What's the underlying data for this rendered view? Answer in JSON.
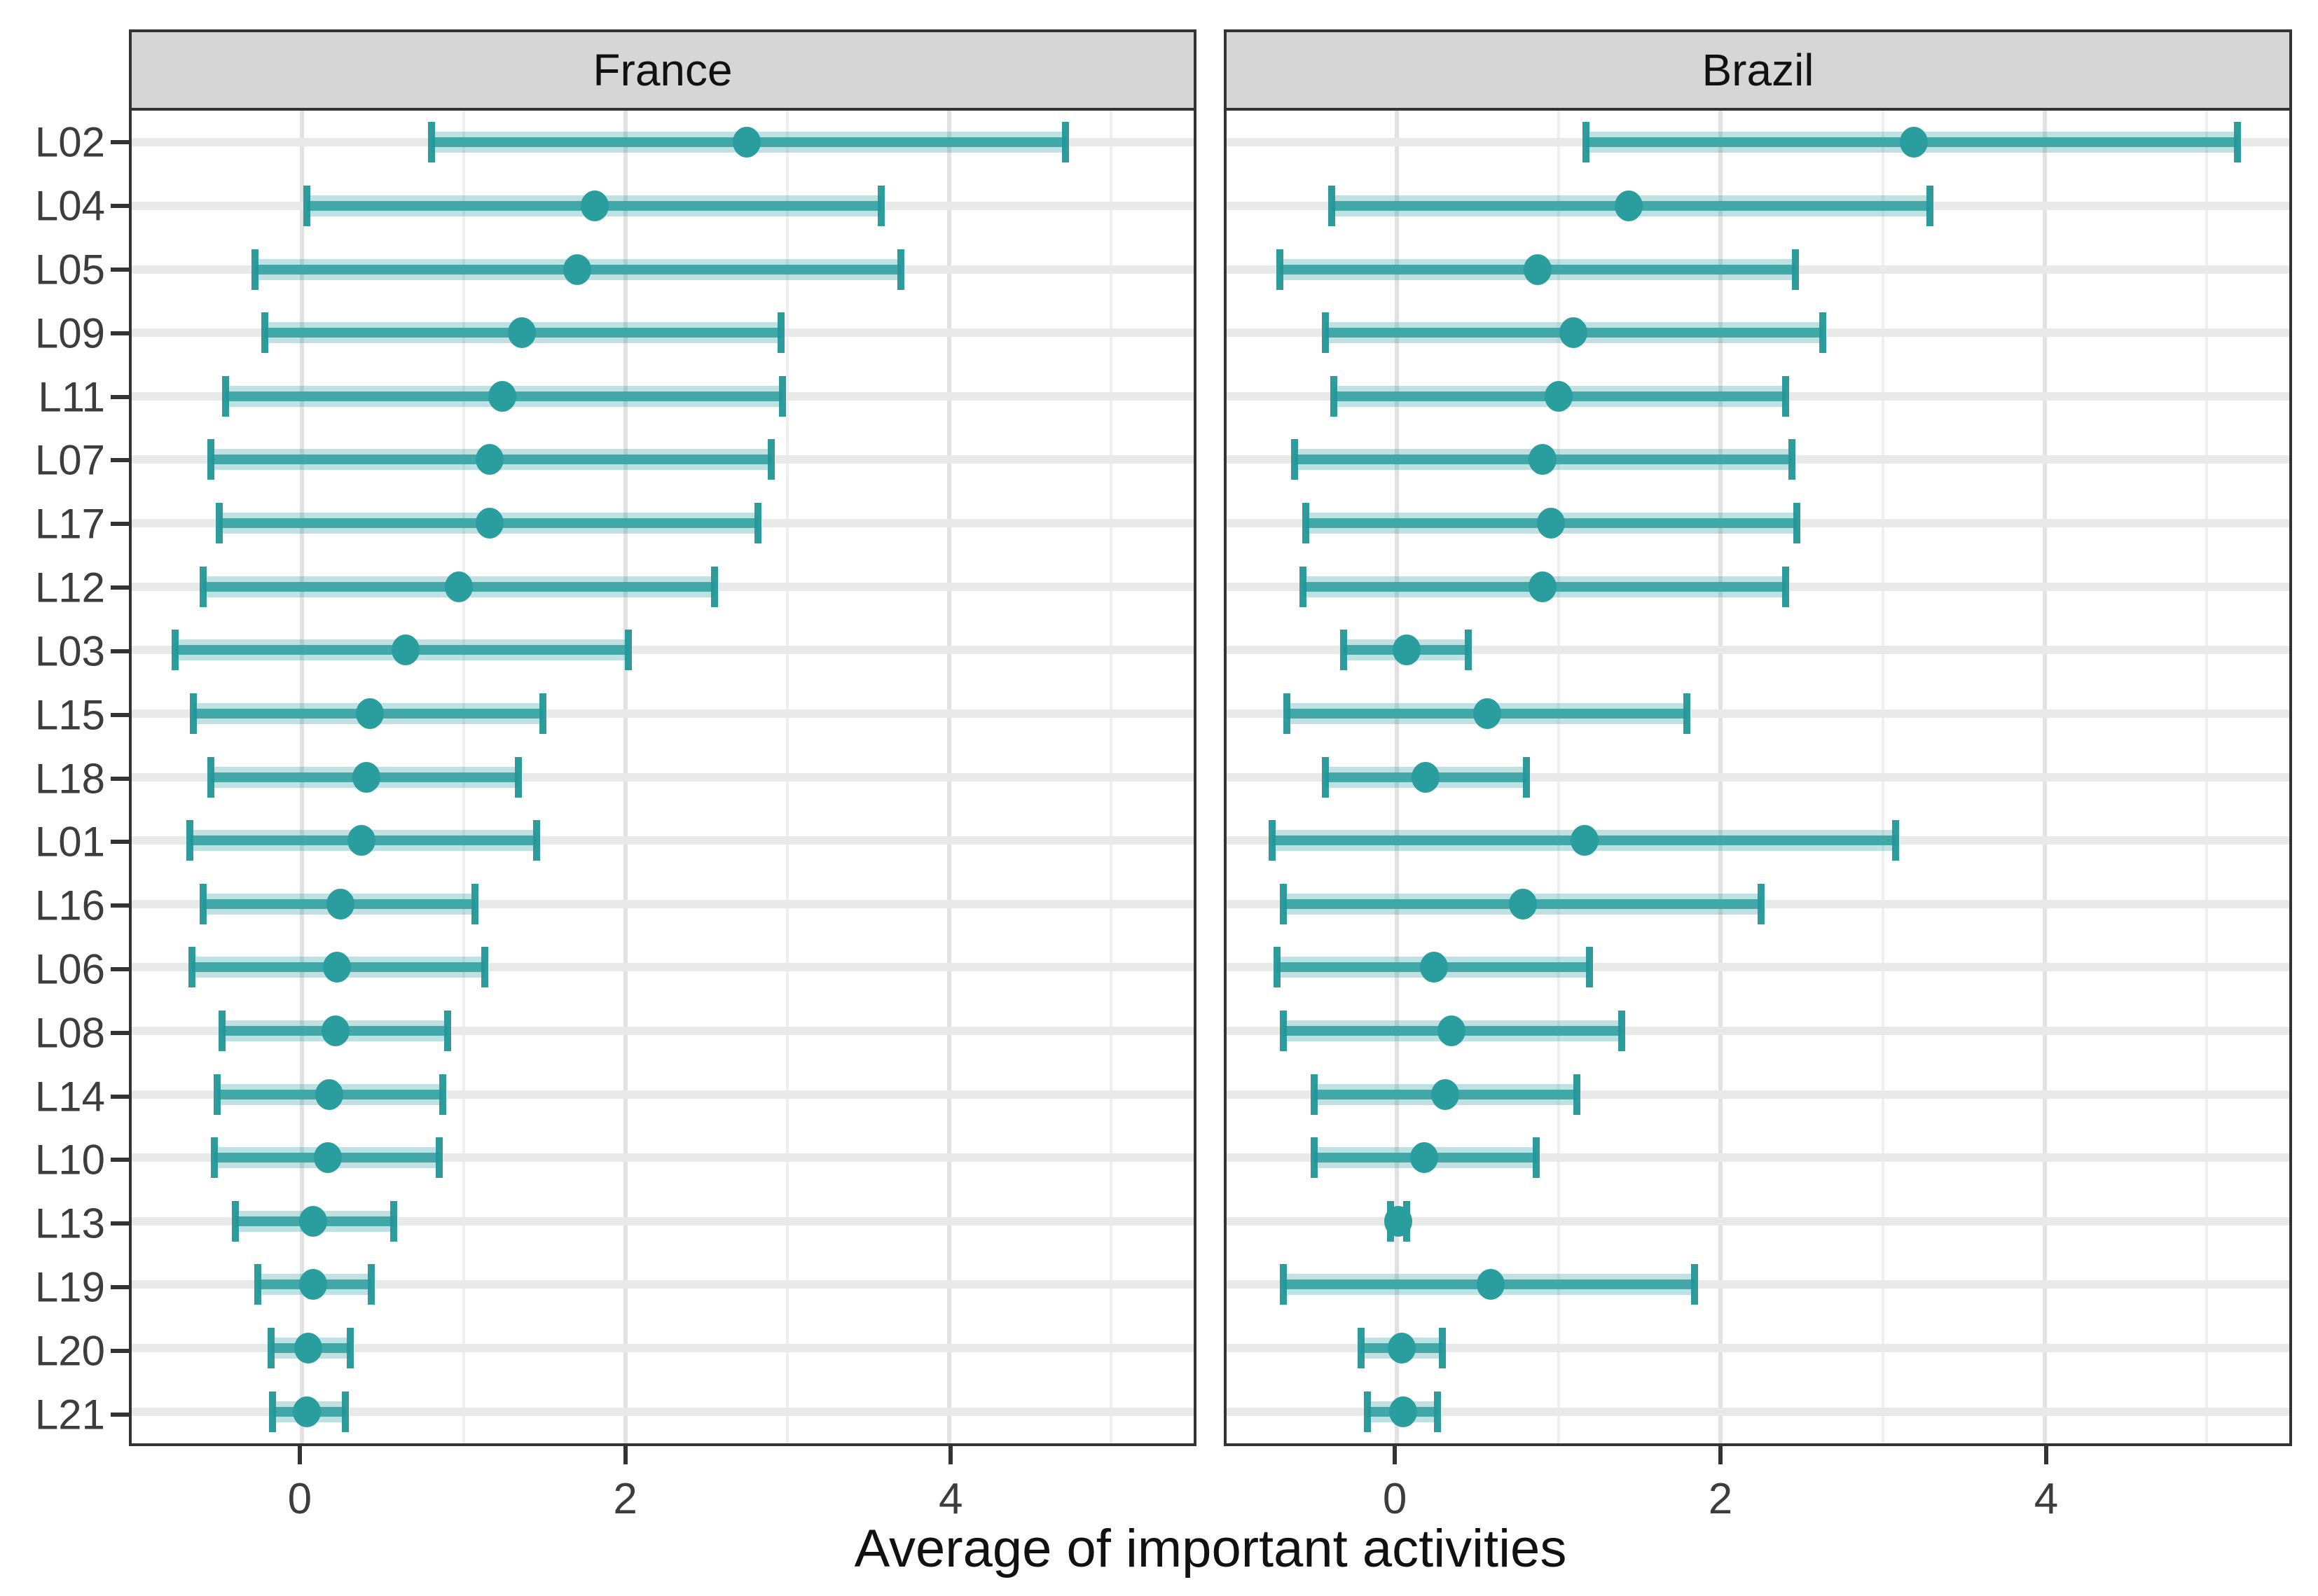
{
  "chart_data": {
    "type": "scatter",
    "subtype": "dot-plot-with-horizontal-error-bars",
    "title": "",
    "xlabel": "Average of important activities",
    "ylabel": "",
    "xlim": [
      -1.05,
      5.51
    ],
    "x_major_ticks": [
      0,
      2,
      4
    ],
    "x_tick_labels": [
      "0",
      "2",
      "4"
    ],
    "x_minor_gridlines": [
      1,
      3,
      5
    ],
    "grid": true,
    "legend": "none",
    "point_color": "#2A9D9E",
    "bar_color": "rgba(42,157,158,0.82)",
    "header_fill": "#d6d6d6",
    "categories": [
      "L02",
      "L04",
      "L05",
      "L09",
      "L11",
      "L07",
      "L17",
      "L12",
      "L03",
      "L15",
      "L18",
      "L01",
      "L16",
      "L06",
      "L08",
      "L14",
      "L10",
      "L13",
      "L19",
      "L20",
      "L21"
    ],
    "facets": [
      {
        "label": "France",
        "rows": [
          {
            "label": "L02",
            "x": 2.75,
            "xmin": 0.8,
            "xmax": 4.72
          },
          {
            "label": "L04",
            "x": 1.81,
            "xmin": 0.03,
            "xmax": 3.58
          },
          {
            "label": "L05",
            "x": 1.7,
            "xmin": -0.29,
            "xmax": 3.7
          },
          {
            "label": "L09",
            "x": 1.36,
            "xmin": -0.23,
            "xmax": 2.96
          },
          {
            "label": "L11",
            "x": 1.24,
            "xmin": -0.47,
            "xmax": 2.97
          },
          {
            "label": "L07",
            "x": 1.16,
            "xmin": -0.56,
            "xmax": 2.9
          },
          {
            "label": "L17",
            "x": 1.16,
            "xmin": -0.51,
            "xmax": 2.82
          },
          {
            "label": "L12",
            "x": 0.97,
            "xmin": -0.61,
            "xmax": 2.55
          },
          {
            "label": "L03",
            "x": 0.64,
            "xmin": -0.78,
            "xmax": 2.02
          },
          {
            "label": "L15",
            "x": 0.42,
            "xmin": -0.67,
            "xmax": 1.49
          },
          {
            "label": "L18",
            "x": 0.4,
            "xmin": -0.56,
            "xmax": 1.34
          },
          {
            "label": "L01",
            "x": 0.37,
            "xmin": -0.69,
            "xmax": 1.45
          },
          {
            "label": "L16",
            "x": 0.24,
            "xmin": -0.61,
            "xmax": 1.07
          },
          {
            "label": "L06",
            "x": 0.22,
            "xmin": -0.68,
            "xmax": 1.13
          },
          {
            "label": "L08",
            "x": 0.21,
            "xmin": -0.49,
            "xmax": 0.9
          },
          {
            "label": "L14",
            "x": 0.17,
            "xmin": -0.52,
            "xmax": 0.87
          },
          {
            "label": "L10",
            "x": 0.16,
            "xmin": -0.54,
            "xmax": 0.85
          },
          {
            "label": "L13",
            "x": 0.07,
            "xmin": -0.41,
            "xmax": 0.57
          },
          {
            "label": "L19",
            "x": 0.07,
            "xmin": -0.27,
            "xmax": 0.43
          },
          {
            "label": "L20",
            "x": 0.04,
            "xmin": -0.19,
            "xmax": 0.3
          },
          {
            "label": "L21",
            "x": 0.03,
            "xmin": -0.18,
            "xmax": 0.27
          }
        ]
      },
      {
        "label": "Brazil",
        "rows": [
          {
            "label": "L02",
            "x": 3.19,
            "xmin": 1.17,
            "xmax": 5.19
          },
          {
            "label": "L04",
            "x": 1.43,
            "xmin": -0.4,
            "xmax": 3.29
          },
          {
            "label": "L05",
            "x": 0.87,
            "xmin": -0.72,
            "xmax": 2.46
          },
          {
            "label": "L09",
            "x": 1.09,
            "xmin": -0.44,
            "xmax": 2.63
          },
          {
            "label": "L11",
            "x": 1.0,
            "xmin": -0.39,
            "xmax": 2.4
          },
          {
            "label": "L07",
            "x": 0.9,
            "xmin": -0.63,
            "xmax": 2.44
          },
          {
            "label": "L17",
            "x": 0.95,
            "xmin": -0.56,
            "xmax": 2.47
          },
          {
            "label": "L12",
            "x": 0.9,
            "xmin": -0.58,
            "xmax": 2.4
          },
          {
            "label": "L03",
            "x": 0.06,
            "xmin": -0.33,
            "xmax": 0.44
          },
          {
            "label": "L15",
            "x": 0.56,
            "xmin": -0.68,
            "xmax": 1.79
          },
          {
            "label": "L18",
            "x": 0.18,
            "xmin": -0.44,
            "xmax": 0.8
          },
          {
            "label": "L01",
            "x": 1.16,
            "xmin": -0.77,
            "xmax": 3.08
          },
          {
            "label": "L16",
            "x": 0.78,
            "xmin": -0.7,
            "xmax": 2.25
          },
          {
            "label": "L06",
            "x": 0.23,
            "xmin": -0.74,
            "xmax": 1.19
          },
          {
            "label": "L08",
            "x": 0.34,
            "xmin": -0.7,
            "xmax": 1.39
          },
          {
            "label": "L14",
            "x": 0.3,
            "xmin": -0.51,
            "xmax": 1.11
          },
          {
            "label": "L10",
            "x": 0.17,
            "xmin": -0.51,
            "xmax": 0.86
          },
          {
            "label": "L13",
            "x": 0.01,
            "xmin": -0.04,
            "xmax": 0.06
          },
          {
            "label": "L19",
            "x": 0.58,
            "xmin": -0.7,
            "xmax": 1.84
          },
          {
            "label": "L20",
            "x": 0.03,
            "xmin": -0.22,
            "xmax": 0.28
          },
          {
            "label": "L21",
            "x": 0.04,
            "xmin": -0.18,
            "xmax": 0.25
          }
        ]
      }
    ]
  }
}
